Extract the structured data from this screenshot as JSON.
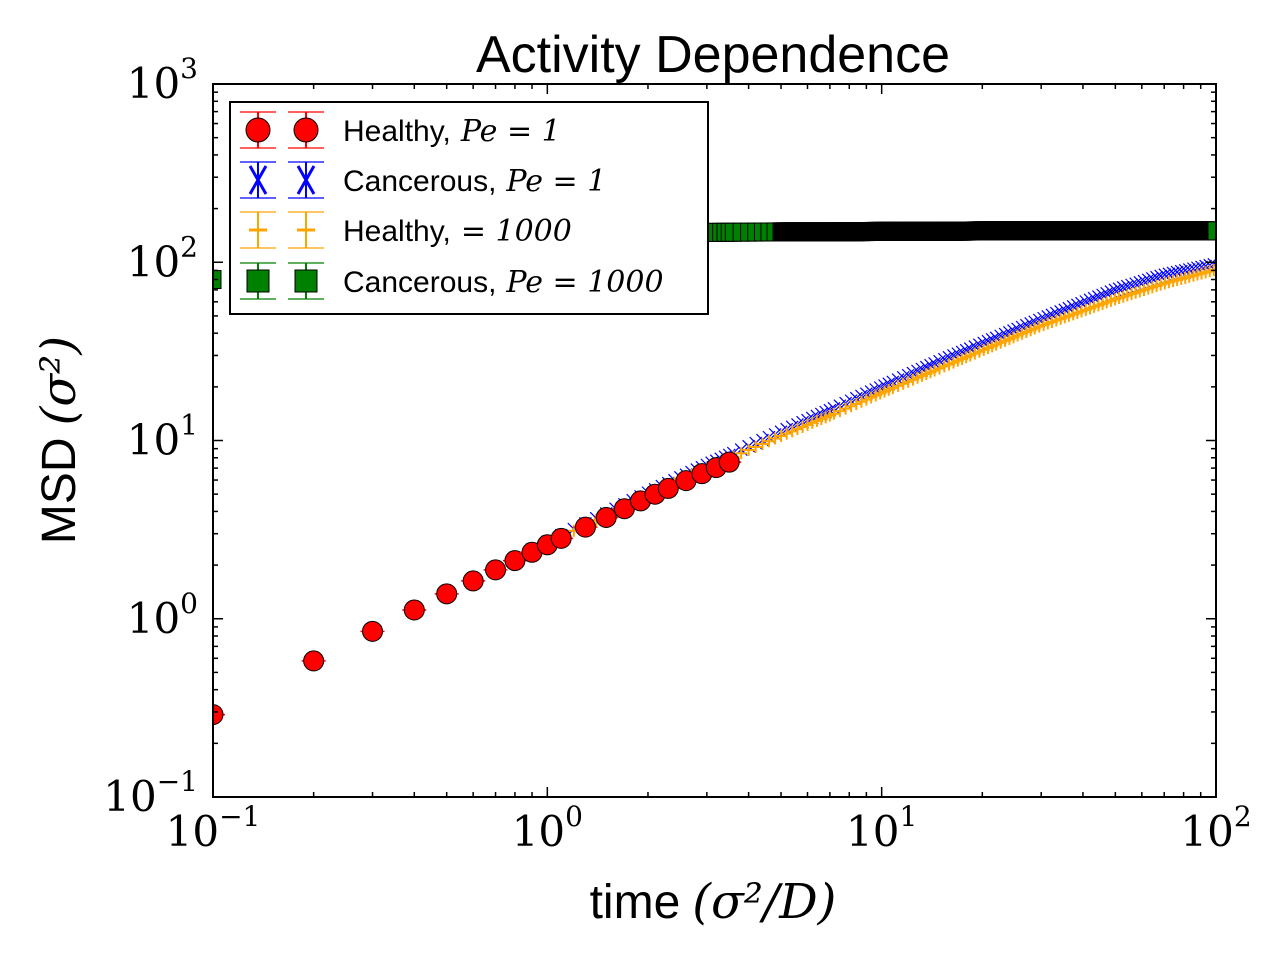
{
  "chart_data": {
    "type": "scatter",
    "title": "Activity Dependence",
    "xlabel_text": "time",
    "xlabel_math": "(σ²/D)",
    "ylabel_text": "MSD",
    "ylabel_math": "(σ²)",
    "xscale": "log",
    "yscale": "log",
    "xlim": [
      0.1,
      100
    ],
    "ylim": [
      0.1,
      1000
    ],
    "x_ticks": [
      {
        "value": 0.1,
        "base": "10",
        "exp": "−1"
      },
      {
        "value": 1,
        "base": "10",
        "exp": "0"
      },
      {
        "value": 10,
        "base": "10",
        "exp": "1"
      },
      {
        "value": 100,
        "base": "10",
        "exp": "2"
      }
    ],
    "y_ticks": [
      {
        "value": 0.1,
        "base": "10",
        "exp": "−1"
      },
      {
        "value": 1,
        "base": "10",
        "exp": "0"
      },
      {
        "value": 10,
        "base": "10",
        "exp": "1"
      },
      {
        "value": 100,
        "base": "10",
        "exp": "2"
      },
      {
        "value": 1000,
        "base": "10",
        "exp": "3"
      }
    ],
    "legend_position": "upper-left",
    "series": [
      {
        "name": "Healthy, Pe = 1",
        "legend_label": "Healthy,",
        "legend_math": "Pe = 1",
        "marker": "circle",
        "color": "#ff0000",
        "x": [
          0.1,
          0.2,
          0.3,
          0.4,
          0.5,
          0.6,
          0.7,
          0.8,
          0.9,
          1.0,
          1.5,
          2,
          3,
          5,
          7,
          10,
          15,
          20,
          30,
          50,
          70,
          100
        ],
        "y": [
          0.29,
          0.58,
          0.85,
          1.12,
          1.38,
          1.63,
          1.88,
          2.12,
          2.36,
          2.6,
          3.7,
          4.8,
          6.7,
          10.0,
          13.0,
          17.0,
          24.0,
          30.0,
          43.0,
          62.0,
          75.0,
          88.0
        ]
      },
      {
        "name": "Cancerous, Pe = 1",
        "legend_label": "Cancerous,",
        "legend_math": "Pe = 1",
        "marker": "x",
        "color": "#0000ff",
        "x": [
          0.1,
          0.2,
          0.3,
          0.4,
          0.5,
          0.6,
          0.7,
          0.8,
          0.9,
          1.0,
          1.5,
          2,
          3,
          5,
          7,
          10,
          15,
          20,
          30,
          50,
          70,
          100
        ],
        "y": [
          0.29,
          0.59,
          0.87,
          1.15,
          1.42,
          1.68,
          1.94,
          2.2,
          2.45,
          2.7,
          3.9,
          5.1,
          7.3,
          11.2,
          14.8,
          20.0,
          28.0,
          35.0,
          48.0,
          70.0,
          85.0,
          98.0
        ]
      },
      {
        "name": "Healthy, = 1000",
        "legend_label": "Healthy,",
        "legend_math": "= 1000",
        "marker": "plus",
        "color": "#ffa500",
        "x": [
          0.1,
          0.2,
          0.3,
          0.4,
          0.5,
          0.6,
          0.7,
          0.8,
          0.9,
          1.0,
          1.5,
          2,
          3,
          5,
          7,
          10,
          15,
          20,
          30,
          50,
          70,
          100
        ],
        "y": [
          0.29,
          0.58,
          0.86,
          1.13,
          1.39,
          1.65,
          1.9,
          2.15,
          2.4,
          2.65,
          3.8,
          4.95,
          7.0,
          10.6,
          13.8,
          18.5,
          25.5,
          32.0,
          44.0,
          62.0,
          76.0,
          91.0
        ]
      },
      {
        "name": "Cancerous, Pe = 1000",
        "legend_label": "Cancerous,",
        "legend_math": "Pe = 1000",
        "marker": "square",
        "color": "#008000",
        "x": [
          0.1,
          0.2,
          0.3,
          0.5,
          0.7,
          1.0,
          1.5,
          2,
          3,
          5,
          7,
          10,
          15,
          20,
          30,
          50,
          70,
          100
        ],
        "y": [
          80,
          100,
          115,
          128,
          135,
          140,
          143,
          145,
          147,
          148,
          148,
          149,
          149,
          150,
          150,
          150,
          150,
          150
        ]
      }
    ]
  }
}
